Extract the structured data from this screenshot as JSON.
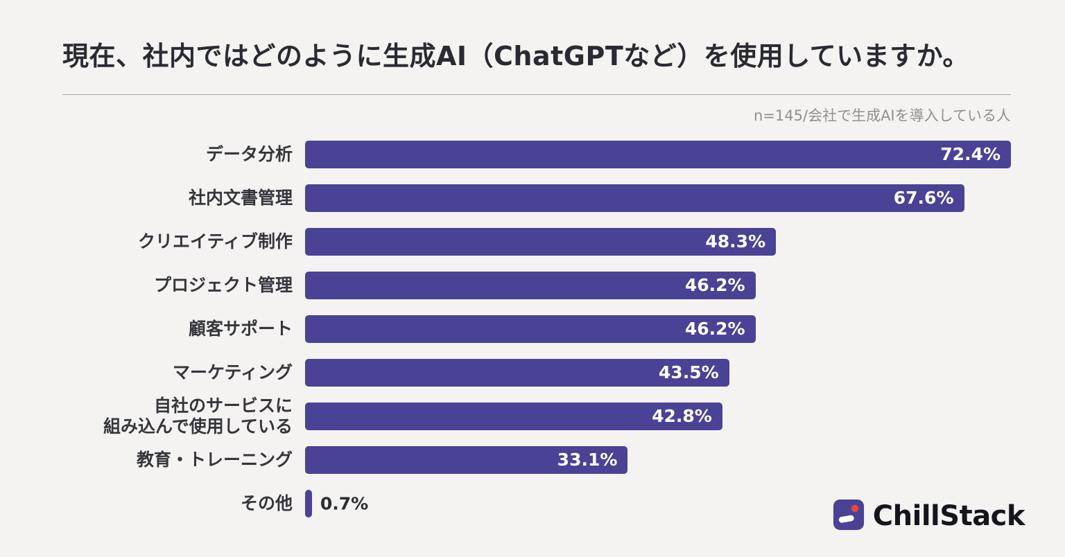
{
  "page": {
    "title": "現在、社内ではどのように生成AI（ChatGPTなど）を使用していますか。",
    "note": "n=145/会社で生成AIを導入している人"
  },
  "colors": {
    "background": "#f4f3f1",
    "bar": "#4a4294",
    "value_label_inside": "#ffffff",
    "value_label_outside": "#2c2c33",
    "logo_red": "#e2473f",
    "logo_purple": "#4a4294"
  },
  "chart_data": {
    "type": "bar",
    "orientation": "horizontal",
    "title": "現在、社内ではどのように生成AI（ChatGPTなど）を使用していますか。",
    "subtitle": "n=145/会社で生成AIを導入している人",
    "xlabel": "",
    "ylabel": "",
    "xlim": [
      0,
      75
    ],
    "grid": false,
    "legend": null,
    "categories": [
      "データ分析",
      "社内文書管理",
      "クリエイティブ制作",
      "プロジェクト管理",
      "顧客サポート",
      "マーケティング",
      "自社のサービスに\n組み込んで使用している",
      "教育・トレーニング",
      "その他"
    ],
    "values": [
      72.4,
      67.6,
      48.3,
      46.2,
      46.2,
      43.5,
      42.8,
      33.1,
      0.7
    ],
    "value_labels": [
      "72.4%",
      "67.6%",
      "48.3%",
      "46.2%",
      "46.2%",
      "43.5%",
      "42.8%",
      "33.1%",
      "0.7%"
    ]
  },
  "footer": {
    "logo_text": "ChillStack"
  }
}
